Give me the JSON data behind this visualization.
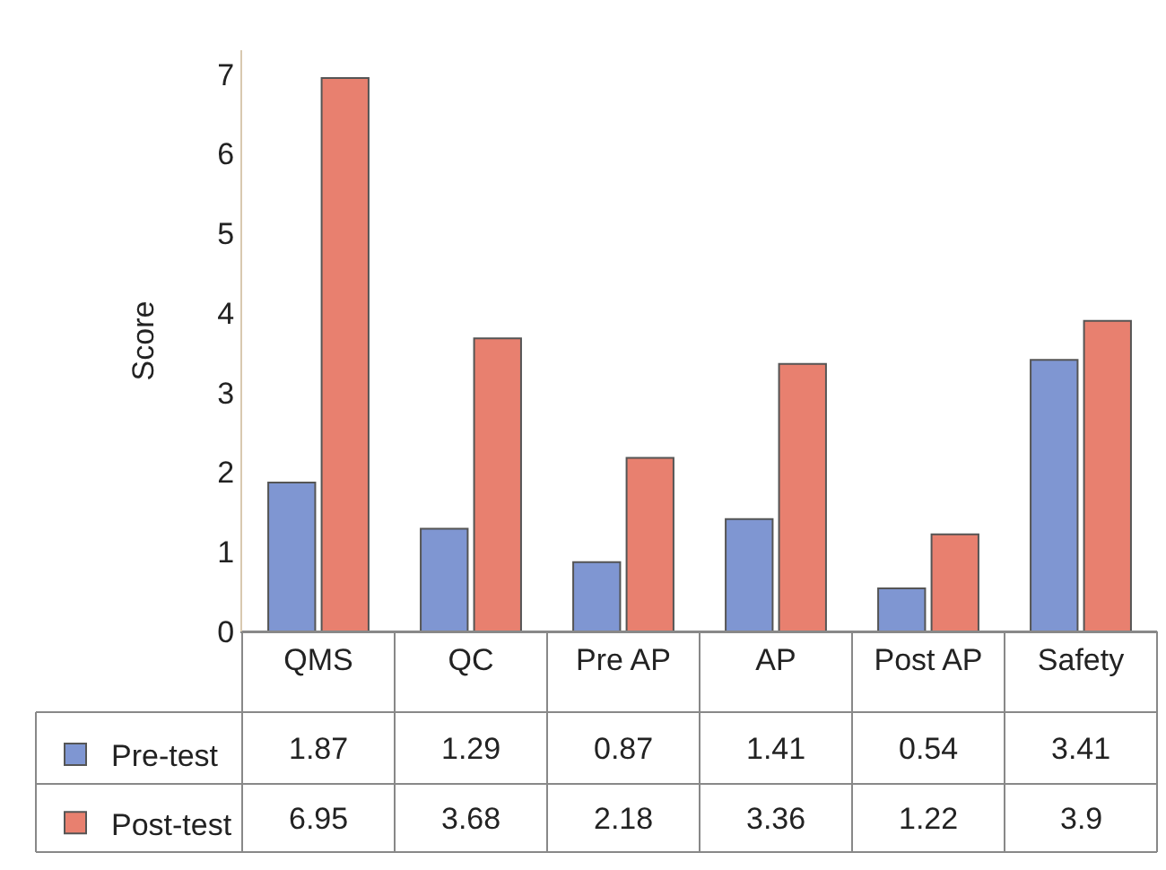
{
  "chart_data": {
    "type": "bar",
    "ylabel": "Score",
    "categories": [
      "QMS",
      "QC",
      "Pre AP",
      "AP",
      "Post AP",
      "Safety"
    ],
    "series": [
      {
        "name": "Pre-test",
        "color": "#7f96d2",
        "values": [
          1.87,
          1.29,
          0.87,
          1.41,
          0.54,
          3.41
        ]
      },
      {
        "name": "Post-test",
        "color": "#e8806f",
        "values": [
          6.95,
          3.68,
          2.18,
          3.36,
          1.22,
          3.9
        ]
      }
    ],
    "ylim": [
      0,
      7.3
    ],
    "yticks": [
      0,
      1,
      2,
      3,
      4,
      5,
      6,
      7
    ],
    "grid": false,
    "legend": "bottom left",
    "data_labels": true
  }
}
